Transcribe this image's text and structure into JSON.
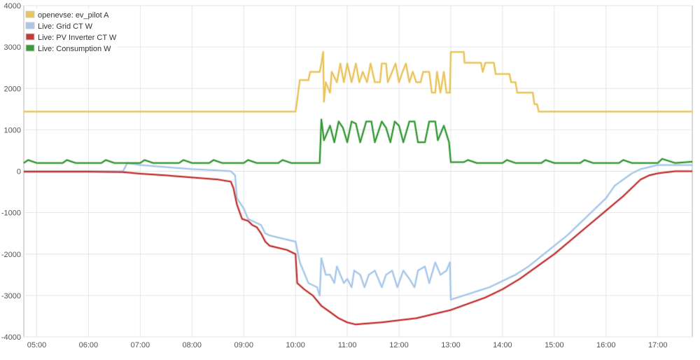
{
  "chart_data": {
    "type": "line",
    "title": "",
    "xlabel": "",
    "ylabel": "",
    "ylim": [
      -4000,
      4000
    ],
    "yticks": [
      4000,
      3000,
      2000,
      1000,
      0,
      -1000,
      -2000,
      -3000,
      -4000
    ],
    "xlim": [
      "04:45",
      "17:40"
    ],
    "xticks": [
      "05:00",
      "06:00",
      "07:00",
      "08:00",
      "09:00",
      "10:00",
      "11:00",
      "12:00",
      "13:00",
      "14:00",
      "15:00",
      "16:00",
      "17:00"
    ],
    "grid": true,
    "legend_position": "top-left",
    "series": [
      {
        "name": "openevse: ev_pilot A",
        "color": "#e8c45a",
        "points": [
          [
            "04:45",
            1440
          ],
          [
            "10:00",
            1440
          ],
          [
            "10:02",
            1720
          ],
          [
            "10:05",
            2200
          ],
          [
            "10:15",
            2200
          ],
          [
            "10:17",
            2400
          ],
          [
            "10:28",
            2400
          ],
          [
            "10:30",
            2600
          ],
          [
            "10:32",
            2880
          ],
          [
            "10:33",
            1680
          ],
          [
            "10:35",
            2150
          ],
          [
            "10:40",
            1900
          ],
          [
            "10:42",
            2400
          ],
          [
            "10:48",
            2150
          ],
          [
            "10:52",
            2600
          ],
          [
            "10:56",
            2150
          ],
          [
            "11:00",
            2600
          ],
          [
            "11:05",
            2150
          ],
          [
            "11:10",
            2600
          ],
          [
            "11:14",
            2150
          ],
          [
            "11:18",
            2400
          ],
          [
            "11:23",
            2150
          ],
          [
            "11:27",
            2600
          ],
          [
            "11:32",
            2150
          ],
          [
            "11:38",
            2150
          ],
          [
            "11:40",
            2600
          ],
          [
            "11:45",
            2600
          ],
          [
            "11:47",
            2150
          ],
          [
            "11:52",
            2400
          ],
          [
            "11:56",
            2600
          ],
          [
            "12:00",
            2150
          ],
          [
            "12:04",
            2400
          ],
          [
            "12:08",
            2600
          ],
          [
            "12:12",
            2150
          ],
          [
            "12:16",
            2400
          ],
          [
            "12:20",
            2150
          ],
          [
            "12:25",
            2150
          ],
          [
            "12:28",
            2400
          ],
          [
            "12:35",
            2400
          ],
          [
            "12:38",
            1900
          ],
          [
            "12:42",
            1900
          ],
          [
            "12:44",
            2400
          ],
          [
            "12:48",
            1900
          ],
          [
            "12:52",
            2400
          ],
          [
            "12:55",
            1900
          ],
          [
            "12:59",
            1900
          ],
          [
            "13:00",
            2880
          ],
          [
            "13:15",
            2880
          ],
          [
            "13:16",
            2620
          ],
          [
            "13:35",
            2620
          ],
          [
            "13:37",
            2400
          ],
          [
            "13:40",
            2620
          ],
          [
            "13:50",
            2620
          ],
          [
            "13:52",
            2350
          ],
          [
            "14:08",
            2350
          ],
          [
            "14:10",
            2150
          ],
          [
            "14:15",
            2150
          ],
          [
            "14:17",
            1900
          ],
          [
            "14:35",
            1900
          ],
          [
            "14:37",
            1620
          ],
          [
            "14:40",
            1620
          ],
          [
            "14:42",
            1440
          ],
          [
            "17:40",
            1440
          ]
        ]
      },
      {
        "name": "Live: Grid CT W",
        "color": "#a9c8e8",
        "points": [
          [
            "04:45",
            0
          ],
          [
            "06:00",
            0
          ],
          [
            "06:40",
            0
          ],
          [
            "06:45",
            200
          ],
          [
            "07:00",
            150
          ],
          [
            "07:30",
            100
          ],
          [
            "08:00",
            50
          ],
          [
            "08:30",
            20
          ],
          [
            "08:45",
            0
          ],
          [
            "08:50",
            -100
          ],
          [
            "08:52",
            -650
          ],
          [
            "09:00",
            -900
          ],
          [
            "09:05",
            -1150
          ],
          [
            "09:15",
            -1250
          ],
          [
            "09:20",
            -1300
          ],
          [
            "09:25",
            -1500
          ],
          [
            "09:30",
            -1550
          ],
          [
            "09:40",
            -1600
          ],
          [
            "09:50",
            -1650
          ],
          [
            "10:00",
            -1700
          ],
          [
            "10:05",
            -2200
          ],
          [
            "10:15",
            -2700
          ],
          [
            "10:25",
            -2800
          ],
          [
            "10:28",
            -3000
          ],
          [
            "10:30",
            -2100
          ],
          [
            "10:35",
            -2500
          ],
          [
            "10:40",
            -2500
          ],
          [
            "10:45",
            -2700
          ],
          [
            "10:48",
            -2300
          ],
          [
            "10:52",
            -2500
          ],
          [
            "10:56",
            -2700
          ],
          [
            "11:00",
            -2600
          ],
          [
            "11:05",
            -2800
          ],
          [
            "11:08",
            -2400
          ],
          [
            "11:15",
            -2500
          ],
          [
            "11:20",
            -2800
          ],
          [
            "11:25",
            -2500
          ],
          [
            "11:32",
            -2400
          ],
          [
            "11:40",
            -2800
          ],
          [
            "11:45",
            -2500
          ],
          [
            "11:52",
            -2400
          ],
          [
            "11:58",
            -2800
          ],
          [
            "12:05",
            -2400
          ],
          [
            "12:12",
            -2600
          ],
          [
            "12:18",
            -2800
          ],
          [
            "12:22",
            -2400
          ],
          [
            "12:30",
            -2300
          ],
          [
            "12:35",
            -2700
          ],
          [
            "12:42",
            -2200
          ],
          [
            "12:48",
            -2500
          ],
          [
            "12:55",
            -2400
          ],
          [
            "12:59",
            -2200
          ],
          [
            "13:00",
            -3100
          ],
          [
            "13:15",
            -3000
          ],
          [
            "13:30",
            -2900
          ],
          [
            "13:45",
            -2800
          ],
          [
            "14:00",
            -2650
          ],
          [
            "14:15",
            -2500
          ],
          [
            "14:30",
            -2300
          ],
          [
            "14:45",
            -2050
          ],
          [
            "15:00",
            -1800
          ],
          [
            "15:15",
            -1550
          ],
          [
            "15:30",
            -1250
          ],
          [
            "15:45",
            -950
          ],
          [
            "16:00",
            -650
          ],
          [
            "16:10",
            -350
          ],
          [
            "16:20",
            -200
          ],
          [
            "16:30",
            -50
          ],
          [
            "16:40",
            50
          ],
          [
            "16:50",
            100
          ],
          [
            "17:00",
            150
          ],
          [
            "17:20",
            150
          ],
          [
            "17:40",
            150
          ]
        ]
      },
      {
        "name": "Live: PV Inverter CT W",
        "color": "#c23b3b",
        "points": [
          [
            "04:45",
            -10
          ],
          [
            "06:00",
            -10
          ],
          [
            "06:40",
            -20
          ],
          [
            "07:00",
            -60
          ],
          [
            "07:30",
            -100
          ],
          [
            "08:00",
            -150
          ],
          [
            "08:30",
            -200
          ],
          [
            "08:45",
            -250
          ],
          [
            "08:48",
            -400
          ],
          [
            "08:52",
            -800
          ],
          [
            "08:58",
            -1150
          ],
          [
            "09:05",
            -1200
          ],
          [
            "09:10",
            -1300
          ],
          [
            "09:15",
            -1350
          ],
          [
            "09:20",
            -1500
          ],
          [
            "09:25",
            -1700
          ],
          [
            "09:30",
            -1800
          ],
          [
            "09:40",
            -1850
          ],
          [
            "09:50",
            -1900
          ],
          [
            "10:00",
            -2000
          ],
          [
            "10:02",
            -2700
          ],
          [
            "10:10",
            -2850
          ],
          [
            "10:20",
            -3000
          ],
          [
            "10:30",
            -3250
          ],
          [
            "10:40",
            -3400
          ],
          [
            "10:50",
            -3550
          ],
          [
            "11:00",
            -3650
          ],
          [
            "11:10",
            -3700
          ],
          [
            "11:20",
            -3680
          ],
          [
            "11:40",
            -3650
          ],
          [
            "12:00",
            -3600
          ],
          [
            "12:20",
            -3550
          ],
          [
            "12:40",
            -3450
          ],
          [
            "13:00",
            -3350
          ],
          [
            "13:20",
            -3200
          ],
          [
            "13:40",
            -3050
          ],
          [
            "14:00",
            -2850
          ],
          [
            "14:20",
            -2600
          ],
          [
            "14:40",
            -2300
          ],
          [
            "15:00",
            -2000
          ],
          [
            "15:20",
            -1650
          ],
          [
            "15:40",
            -1300
          ],
          [
            "16:00",
            -950
          ],
          [
            "16:20",
            -600
          ],
          [
            "16:30",
            -400
          ],
          [
            "16:40",
            -200
          ],
          [
            "16:50",
            -100
          ],
          [
            "17:00",
            -50
          ],
          [
            "17:20",
            0
          ],
          [
            "17:40",
            0
          ]
        ]
      },
      {
        "name": "Live: Consumption W",
        "color": "#3a9a3a",
        "points": [
          [
            "04:45",
            200
          ],
          [
            "04:50",
            270
          ],
          [
            "05:00",
            200
          ],
          [
            "05:30",
            200
          ],
          [
            "05:35",
            270
          ],
          [
            "05:45",
            200
          ],
          [
            "06:15",
            200
          ],
          [
            "06:20",
            270
          ],
          [
            "06:30",
            200
          ],
          [
            "07:00",
            200
          ],
          [
            "07:05",
            270
          ],
          [
            "07:15",
            200
          ],
          [
            "07:45",
            200
          ],
          [
            "07:50",
            270
          ],
          [
            "08:00",
            200
          ],
          [
            "08:20",
            200
          ],
          [
            "08:25",
            270
          ],
          [
            "08:35",
            200
          ],
          [
            "09:00",
            200
          ],
          [
            "09:05",
            270
          ],
          [
            "09:15",
            200
          ],
          [
            "09:40",
            200
          ],
          [
            "09:45",
            270
          ],
          [
            "09:55",
            200
          ],
          [
            "10:28",
            200
          ],
          [
            "10:30",
            1250
          ],
          [
            "10:33",
            750
          ],
          [
            "10:40",
            1100
          ],
          [
            "10:45",
            700
          ],
          [
            "10:50",
            1200
          ],
          [
            "10:55",
            1050
          ],
          [
            "11:00",
            700
          ],
          [
            "11:05",
            1200
          ],
          [
            "11:10",
            1150
          ],
          [
            "11:15",
            700
          ],
          [
            "11:22",
            1200
          ],
          [
            "11:28",
            1200
          ],
          [
            "11:32",
            700
          ],
          [
            "11:40",
            1200
          ],
          [
            "11:45",
            1050
          ],
          [
            "11:50",
            700
          ],
          [
            "11:55",
            1200
          ],
          [
            "12:00",
            1100
          ],
          [
            "12:05",
            700
          ],
          [
            "12:12",
            1200
          ],
          [
            "12:18",
            1200
          ],
          [
            "12:22",
            700
          ],
          [
            "12:30",
            700
          ],
          [
            "12:35",
            1200
          ],
          [
            "12:42",
            1200
          ],
          [
            "12:45",
            750
          ],
          [
            "12:52",
            1100
          ],
          [
            "12:58",
            700
          ],
          [
            "13:00",
            220
          ],
          [
            "13:15",
            220
          ],
          [
            "13:20",
            270
          ],
          [
            "13:30",
            200
          ],
          [
            "14:00",
            200
          ],
          [
            "14:05",
            270
          ],
          [
            "14:15",
            200
          ],
          [
            "14:45",
            200
          ],
          [
            "14:50",
            270
          ],
          [
            "15:00",
            200
          ],
          [
            "15:30",
            200
          ],
          [
            "15:35",
            270
          ],
          [
            "15:45",
            200
          ],
          [
            "16:15",
            200
          ],
          [
            "16:20",
            270
          ],
          [
            "16:30",
            200
          ],
          [
            "17:00",
            200
          ],
          [
            "17:05",
            300
          ],
          [
            "17:20",
            200
          ],
          [
            "17:40",
            230
          ]
        ]
      }
    ]
  }
}
